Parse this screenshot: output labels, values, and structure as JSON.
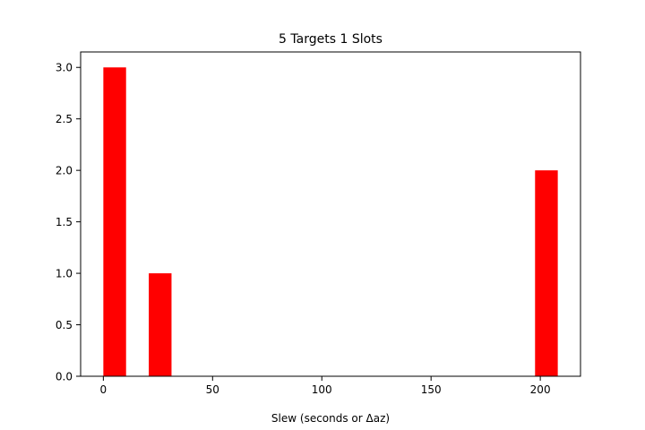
{
  "chart_data": {
    "type": "bar",
    "title": "5 Targets 1 Slots",
    "xlabel": "Slew (seconds or Δaz)",
    "ylabel": "",
    "bars": [
      {
        "x_start": 0,
        "x_end": 10.4,
        "value": 3
      },
      {
        "x_start": 20.8,
        "x_end": 31.2,
        "value": 1
      },
      {
        "x_start": 197.6,
        "x_end": 208,
        "value": 2
      }
    ],
    "xlim": [
      -10.4,
      218.4
    ],
    "ylim": [
      0,
      3.15
    ],
    "xticks": [
      0,
      50,
      100,
      150,
      200
    ],
    "xtick_labels": [
      "0",
      "50",
      "100",
      "150",
      "200"
    ],
    "yticks": [
      0,
      0.5,
      1,
      1.5,
      2,
      2.5,
      3
    ],
    "ytick_labels": [
      "0.0",
      "0.5",
      "1.0",
      "1.5",
      "2.0",
      "2.5",
      "3.0"
    ],
    "bar_color": "#ff0000",
    "grid": false,
    "legend": "none"
  }
}
